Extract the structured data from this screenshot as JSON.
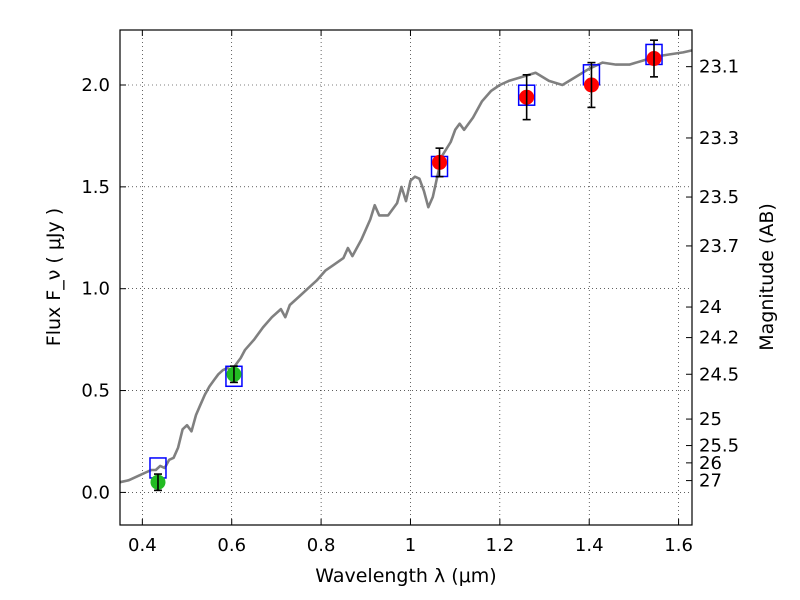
{
  "chart_data": {
    "type": "scatter",
    "xlabel": "Wavelength  λ (μm)",
    "ylabel": "Flux  F_ν  ( μJy )",
    "ylabel_right": "Magnitude (AB)",
    "xlim": [
      0.35,
      1.63
    ],
    "ylim": [
      -0.16,
      2.27
    ],
    "grid": true,
    "x_ticks": [
      0.4,
      0.6,
      0.8,
      1.0,
      1.2,
      1.4,
      1.6
    ],
    "x_tick_labels": [
      "0.4",
      "0.6",
      "0.8",
      "1",
      "1.2",
      "1.4",
      "1.6"
    ],
    "y_ticks": [
      0.0,
      0.5,
      1.0,
      1.5,
      2.0
    ],
    "y_tick_labels": [
      "0.0",
      "0.5",
      "1.0",
      "1.5",
      "2.0"
    ],
    "right_ticks": [
      {
        "flux": 2.09,
        "label": "23.1"
      },
      {
        "flux": 1.74,
        "label": "23.3"
      },
      {
        "flux": 1.45,
        "label": "23.5"
      },
      {
        "flux": 1.21,
        "label": "23.7"
      },
      {
        "flux": 0.91,
        "label": "24"
      },
      {
        "flux": 0.76,
        "label": "24.2"
      },
      {
        "flux": 0.58,
        "label": "24.5"
      },
      {
        "flux": 0.36,
        "label": "25"
      },
      {
        "flux": 0.23,
        "label": "25.5"
      },
      {
        "flux": 0.145,
        "label": "26"
      },
      {
        "flux": 0.058,
        "label": "27"
      }
    ],
    "series": [
      {
        "kind": "model_spectrum",
        "color": "#808080",
        "points": [
          [
            0.35,
            0.05
          ],
          [
            0.37,
            0.06
          ],
          [
            0.39,
            0.08
          ],
          [
            0.41,
            0.1
          ],
          [
            0.42,
            0.11
          ],
          [
            0.43,
            0.11
          ],
          [
            0.44,
            0.13
          ],
          [
            0.45,
            0.12
          ],
          [
            0.46,
            0.16
          ],
          [
            0.47,
            0.17
          ],
          [
            0.48,
            0.22
          ],
          [
            0.49,
            0.31
          ],
          [
            0.5,
            0.33
          ],
          [
            0.51,
            0.3
          ],
          [
            0.52,
            0.38
          ],
          [
            0.53,
            0.43
          ],
          [
            0.54,
            0.48
          ],
          [
            0.55,
            0.52
          ],
          [
            0.56,
            0.55
          ],
          [
            0.57,
            0.58
          ],
          [
            0.58,
            0.6
          ],
          [
            0.59,
            0.61
          ],
          [
            0.6,
            0.6
          ],
          [
            0.61,
            0.63
          ],
          [
            0.62,
            0.66
          ],
          [
            0.63,
            0.7
          ],
          [
            0.65,
            0.75
          ],
          [
            0.67,
            0.81
          ],
          [
            0.69,
            0.86
          ],
          [
            0.71,
            0.9
          ],
          [
            0.72,
            0.86
          ],
          [
            0.73,
            0.92
          ],
          [
            0.75,
            0.96
          ],
          [
            0.77,
            1.0
          ],
          [
            0.79,
            1.04
          ],
          [
            0.81,
            1.09
          ],
          [
            0.83,
            1.12
          ],
          [
            0.85,
            1.15
          ],
          [
            0.86,
            1.2
          ],
          [
            0.87,
            1.16
          ],
          [
            0.89,
            1.24
          ],
          [
            0.91,
            1.34
          ],
          [
            0.92,
            1.41
          ],
          [
            0.93,
            1.36
          ],
          [
            0.95,
            1.36
          ],
          [
            0.97,
            1.42
          ],
          [
            0.98,
            1.5
          ],
          [
            0.99,
            1.43
          ],
          [
            1.0,
            1.53
          ],
          [
            1.01,
            1.55
          ],
          [
            1.02,
            1.54
          ],
          [
            1.03,
            1.48
          ],
          [
            1.04,
            1.4
          ],
          [
            1.05,
            1.45
          ],
          [
            1.07,
            1.65
          ],
          [
            1.09,
            1.72
          ],
          [
            1.1,
            1.78
          ],
          [
            1.11,
            1.81
          ],
          [
            1.12,
            1.78
          ],
          [
            1.14,
            1.84
          ],
          [
            1.16,
            1.92
          ],
          [
            1.18,
            1.97
          ],
          [
            1.2,
            2.0
          ],
          [
            1.22,
            2.02
          ],
          [
            1.25,
            2.04
          ],
          [
            1.28,
            2.06
          ],
          [
            1.31,
            2.02
          ],
          [
            1.34,
            2.0
          ],
          [
            1.37,
            2.04
          ],
          [
            1.4,
            2.08
          ],
          [
            1.43,
            2.11
          ],
          [
            1.46,
            2.1
          ],
          [
            1.49,
            2.1
          ],
          [
            1.52,
            2.12
          ],
          [
            1.55,
            2.14
          ],
          [
            1.58,
            2.15
          ],
          [
            1.61,
            2.16
          ],
          [
            1.63,
            2.17
          ]
        ]
      },
      {
        "kind": "model_flux_boxes",
        "color": "#0000ff",
        "points": [
          [
            0.435,
            0.12
          ],
          [
            0.605,
            0.57
          ],
          [
            1.065,
            1.6
          ],
          [
            1.26,
            1.95
          ],
          [
            1.405,
            2.05
          ],
          [
            1.545,
            2.15
          ]
        ]
      },
      {
        "kind": "observed_optical",
        "color": "#22bb22",
        "points": [
          [
            0.435,
            0.05,
            0.04
          ],
          [
            0.605,
            0.58,
            0.04
          ]
        ]
      },
      {
        "kind": "observed_nir",
        "color": "#ff0000",
        "points": [
          [
            1.065,
            1.62,
            0.07
          ],
          [
            1.26,
            1.94,
            0.11
          ],
          [
            1.405,
            2.0,
            0.11
          ],
          [
            1.545,
            2.13,
            0.09
          ]
        ]
      }
    ]
  }
}
